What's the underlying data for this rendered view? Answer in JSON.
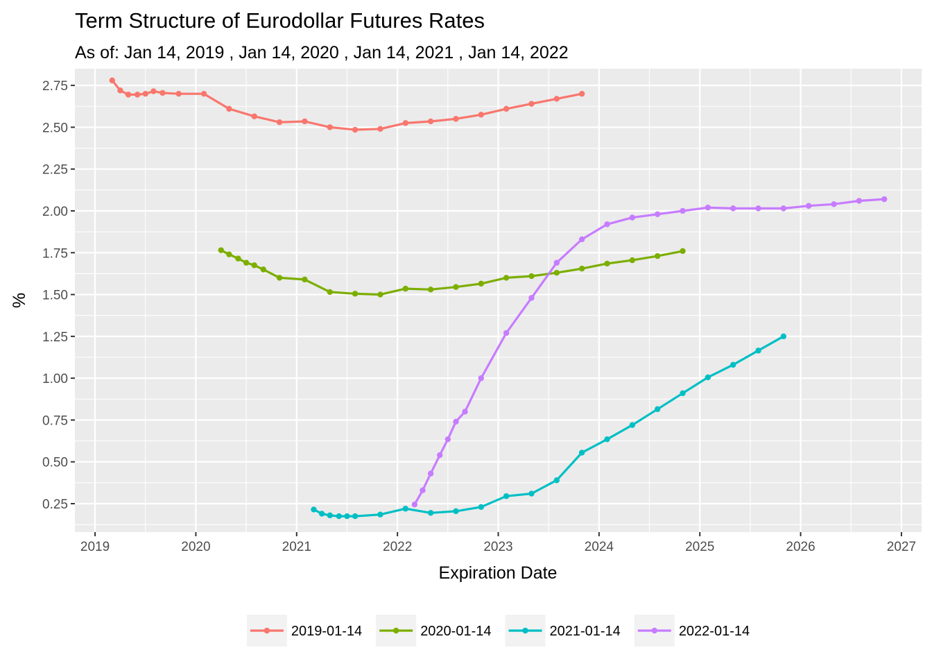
{
  "chart_data": {
    "type": "line",
    "title": "Term Structure of Eurodollar Futures Rates",
    "subtitle": "As of: Jan 14, 2019 , Jan 14, 2020 , Jan 14, 2021 , Jan 14, 2022",
    "xlabel": "Expiration Date",
    "ylabel": "%",
    "xlim": [
      2018.8,
      2027.2
    ],
    "ylim": [
      0.08,
      2.85
    ],
    "x_ticks": [
      2019,
      2020,
      2021,
      2022,
      2023,
      2024,
      2025,
      2026,
      2027
    ],
    "x_tick_labels": [
      "2019",
      "2020",
      "2021",
      "2022",
      "2023",
      "2024",
      "2025",
      "2026",
      "2027"
    ],
    "y_ticks": [
      0.25,
      0.5,
      0.75,
      1.0,
      1.25,
      1.5,
      1.75,
      2.0,
      2.25,
      2.5,
      2.75
    ],
    "y_tick_labels": [
      "0.25",
      "0.50",
      "0.75",
      "1.00",
      "1.25",
      "1.50",
      "1.75",
      "2.00",
      "2.25",
      "2.50",
      "2.75"
    ],
    "grid": true,
    "legend_position": "bottom",
    "series": [
      {
        "name": "2019-01-14",
        "color": "#F8766D",
        "x": [
          2019.17,
          2019.25,
          2019.33,
          2019.42,
          2019.5,
          2019.58,
          2019.67,
          2019.83,
          2020.08,
          2020.33,
          2020.58,
          2020.83,
          2021.08,
          2021.33,
          2021.58,
          2021.83,
          2022.08,
          2022.33,
          2022.58,
          2022.83,
          2023.08,
          2023.33,
          2023.58,
          2023.83
        ],
        "values": [
          2.78,
          2.72,
          2.695,
          2.695,
          2.7,
          2.715,
          2.705,
          2.7,
          2.7,
          2.61,
          2.565,
          2.53,
          2.535,
          2.5,
          2.485,
          2.49,
          2.525,
          2.535,
          2.55,
          2.575,
          2.61,
          2.64,
          2.67,
          2.7
        ]
      },
      {
        "name": "2020-01-14",
        "color": "#7CAE00",
        "x": [
          2020.25,
          2020.33,
          2020.42,
          2020.5,
          2020.58,
          2020.67,
          2020.83,
          2021.08,
          2021.33,
          2021.58,
          2021.83,
          2022.08,
          2022.33,
          2022.58,
          2022.83,
          2023.08,
          2023.33,
          2023.58,
          2023.83,
          2024.08,
          2024.33,
          2024.58,
          2024.83
        ],
        "values": [
          1.765,
          1.74,
          1.715,
          1.69,
          1.675,
          1.65,
          1.6,
          1.59,
          1.515,
          1.505,
          1.5,
          1.535,
          1.53,
          1.545,
          1.565,
          1.6,
          1.61,
          1.63,
          1.655,
          1.685,
          1.705,
          1.73,
          1.76
        ]
      },
      {
        "name": "2021-01-14",
        "color": "#00BFC4",
        "x": [
          2021.17,
          2021.25,
          2021.33,
          2021.42,
          2021.5,
          2021.58,
          2021.83,
          2022.08,
          2022.33,
          2022.58,
          2022.83,
          2023.08,
          2023.33,
          2023.58,
          2023.83,
          2024.08,
          2024.33,
          2024.58,
          2024.83,
          2025.08,
          2025.33,
          2025.58,
          2025.83
        ],
        "values": [
          0.215,
          0.19,
          0.18,
          0.175,
          0.175,
          0.175,
          0.185,
          0.22,
          0.195,
          0.205,
          0.23,
          0.295,
          0.31,
          0.39,
          0.555,
          0.635,
          0.72,
          0.815,
          0.91,
          1.005,
          1.08,
          1.165,
          1.25
        ]
      },
      {
        "name": "2022-01-14",
        "color": "#C77CFF",
        "x": [
          2022.17,
          2022.25,
          2022.33,
          2022.42,
          2022.5,
          2022.58,
          2022.67,
          2022.83,
          2023.08,
          2023.33,
          2023.58,
          2023.83,
          2024.08,
          2024.33,
          2024.58,
          2024.83,
          2025.08,
          2025.33,
          2025.58,
          2025.83,
          2026.08,
          2026.33,
          2026.58,
          2026.83
        ],
        "values": [
          0.245,
          0.33,
          0.43,
          0.54,
          0.635,
          0.74,
          0.8,
          1.0,
          1.27,
          1.48,
          1.69,
          1.83,
          1.92,
          1.96,
          1.98,
          2.0,
          2.02,
          2.015,
          2.015,
          2.015,
          2.03,
          2.04,
          2.06,
          2.07
        ]
      }
    ]
  }
}
